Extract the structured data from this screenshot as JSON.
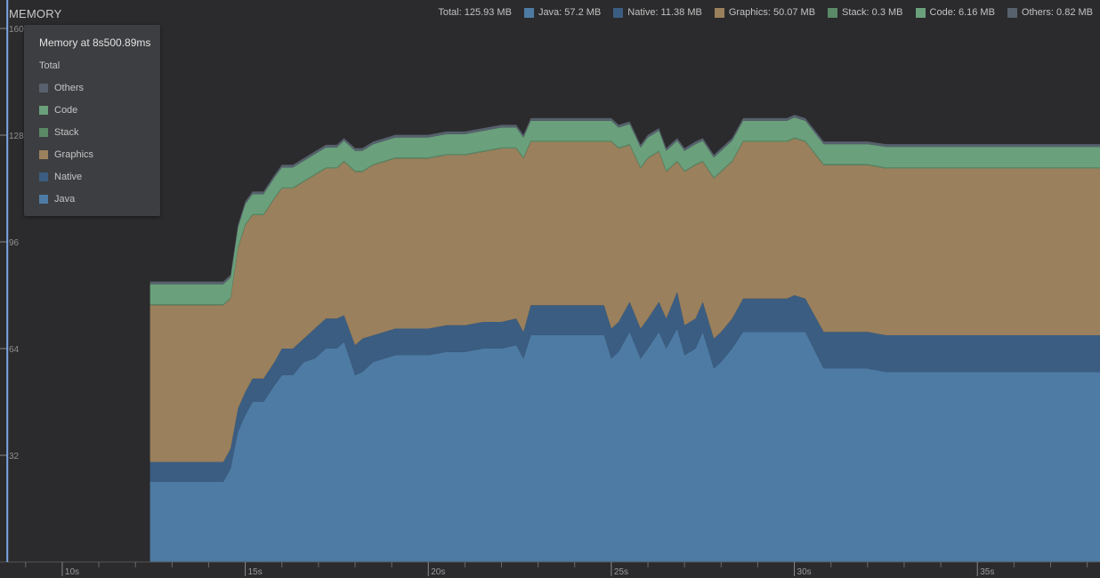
{
  "header": {
    "title": "MEMORY"
  },
  "legend": {
    "total_label": "Total: 125.93 MB",
    "items": [
      {
        "name": "Java",
        "text": "Java:   57.2 MB",
        "color": "#4d7ba4"
      },
      {
        "name": "Native",
        "text": "Native: 11.38 MB",
        "color": "#3b5d82"
      },
      {
        "name": "Graphics",
        "text": "Graphics:  50.07 MB",
        "color": "#9a805c"
      },
      {
        "name": "Stack",
        "text": "Stack:  0.3 MB",
        "color": "#5a8a66"
      },
      {
        "name": "Code",
        "text": "Code:  6.16 MB",
        "color": "#6aa07b"
      },
      {
        "name": "Others",
        "text": "Others: 0.82 MB",
        "color": "#56616d"
      }
    ]
  },
  "tooltip": {
    "title": "Memory at 8s500.89ms",
    "total_label": "Total",
    "rows": [
      {
        "label": "Others",
        "color": "#56616d"
      },
      {
        "label": "Code",
        "color": "#6aa07b"
      },
      {
        "label": "Stack",
        "color": "#5a8a66"
      },
      {
        "label": "Graphics",
        "color": "#9a805c"
      },
      {
        "label": "Native",
        "color": "#3b5d82"
      },
      {
        "label": "Java",
        "color": "#4d7ba4"
      }
    ]
  },
  "chart_data": {
    "type": "area",
    "stacked": true,
    "ylim": [
      0,
      160
    ],
    "xlim": [
      8.3,
      38.35
    ],
    "y_ticks": [
      32,
      64,
      96,
      128,
      160
    ],
    "y_tick_labels": [
      "32",
      "64",
      "96",
      "128",
      "160"
    ],
    "x_ticks": [
      10,
      15,
      20,
      25,
      30,
      35
    ],
    "x_tick_labels": [
      "10s",
      "15s",
      "20s",
      "25s",
      "30s",
      "35s"
    ],
    "cursor_time": 8.5,
    "x": [
      12.4,
      14.4,
      14.6,
      14.8,
      15.0,
      15.2,
      15.5,
      15.8,
      16.0,
      16.3,
      16.6,
      16.9,
      17.2,
      17.5,
      17.7,
      18.0,
      18.2,
      18.5,
      18.8,
      19.1,
      19.5,
      20.0,
      20.5,
      21.0,
      21.5,
      22.0,
      22.4,
      22.6,
      22.8,
      23.0,
      23.5,
      24.0,
      24.5,
      24.8,
      25.0,
      25.2,
      25.5,
      25.8,
      26.0,
      26.3,
      26.5,
      26.8,
      27.0,
      27.3,
      27.5,
      27.8,
      28.0,
      28.3,
      28.6,
      28.9,
      29.2,
      29.5,
      29.8,
      30.0,
      30.3,
      30.8,
      31.0,
      32.0,
      32.5,
      33.0,
      35.0,
      38.35
    ],
    "series": [
      {
        "name": "Java",
        "color": "#4d7ba4",
        "values": [
          24,
          24,
          28,
          39,
          44,
          48,
          48,
          53,
          56,
          56,
          60,
          61,
          64,
          64,
          66,
          56,
          57,
          60,
          61,
          62,
          62,
          62,
          63,
          63,
          64,
          64,
          65,
          61,
          68,
          68,
          68,
          68,
          68,
          68,
          61,
          63,
          69,
          61,
          64,
          69,
          64,
          70,
          62,
          64,
          69,
          58,
          60,
          64,
          69,
          69,
          69,
          69,
          69,
          69,
          69,
          58,
          58,
          58,
          57,
          57,
          57,
          57
        ]
      },
      {
        "name": "Native",
        "color": "#3b5d82",
        "values": [
          6,
          6,
          6,
          7,
          7,
          7,
          7,
          7,
          8,
          8,
          7,
          9,
          9,
          9,
          8,
          9,
          10,
          8,
          8,
          8,
          8,
          8,
          8,
          8,
          8,
          8,
          8,
          8,
          9,
          9,
          9,
          9,
          9,
          9,
          9,
          9,
          9,
          9,
          9,
          9,
          9,
          11,
          9,
          9,
          9,
          9,
          9,
          9,
          10,
          10,
          10,
          10,
          10,
          11,
          10,
          11,
          11,
          11,
          11,
          11,
          11,
          11
        ]
      },
      {
        "name": "Graphics",
        "color": "#9a805c",
        "values": [
          47,
          47,
          45,
          48,
          50,
          49,
          49,
          49,
          48,
          48,
          47,
          46,
          45,
          45,
          46,
          52,
          50,
          51,
          51,
          51,
          51,
          51,
          51,
          51,
          51,
          52,
          51,
          52,
          49,
          49,
          49,
          49,
          49,
          49,
          56,
          52,
          47,
          48,
          48,
          45,
          44,
          39,
          46,
          46,
          42,
          48,
          48,
          47,
          47,
          47,
          47,
          47,
          47,
          47,
          47,
          50,
          50,
          50,
          50,
          50,
          50,
          50
        ]
      },
      {
        "name": "Stack",
        "color": "#5a8a66",
        "values": [
          0.3,
          0.3,
          0.3,
          0.3,
          0.3,
          0.3,
          0.3,
          0.3,
          0.3,
          0.3,
          0.3,
          0.3,
          0.3,
          0.3,
          0.3,
          0.3,
          0.3,
          0.3,
          0.3,
          0.3,
          0.3,
          0.3,
          0.3,
          0.3,
          0.3,
          0.3,
          0.3,
          0.3,
          0.3,
          0.3,
          0.3,
          0.3,
          0.3,
          0.3,
          0.3,
          0.3,
          0.3,
          0.3,
          0.3,
          0.3,
          0.3,
          0.3,
          0.3,
          0.3,
          0.3,
          0.3,
          0.3,
          0.3,
          0.3,
          0.3,
          0.3,
          0.3,
          0.3,
          0.3,
          0.3,
          0.3,
          0.3,
          0.3,
          0.3,
          0.3,
          0.3,
          0.3
        ]
      },
      {
        "name": "Code",
        "color": "#6aa07b",
        "values": [
          6,
          6,
          6,
          6,
          6,
          6,
          6,
          6,
          6,
          6,
          6,
          6,
          6,
          6,
          6,
          6,
          6,
          6,
          6,
          6,
          6,
          6,
          6,
          6,
          6,
          6,
          6,
          6,
          6,
          6,
          6,
          6,
          6,
          6,
          6,
          6,
          6,
          6,
          6,
          6,
          6,
          6,
          6,
          6,
          6,
          6,
          6,
          6,
          6,
          6,
          6,
          6,
          6,
          6,
          6,
          6,
          6,
          6,
          6.2,
          6.2,
          6.2,
          6.2
        ]
      },
      {
        "name": "Others",
        "color": "#56616d",
        "values": [
          0.8,
          0.8,
          0.8,
          0.8,
          0.8,
          0.8,
          0.8,
          0.8,
          0.8,
          0.8,
          0.8,
          0.8,
          0.8,
          0.8,
          0.8,
          0.8,
          0.8,
          0.8,
          0.8,
          0.8,
          0.8,
          0.8,
          0.8,
          0.8,
          0.8,
          0.8,
          0.8,
          0.8,
          0.8,
          0.8,
          0.8,
          0.8,
          0.8,
          0.8,
          0.8,
          0.8,
          0.8,
          0.8,
          0.8,
          0.8,
          0.8,
          0.8,
          0.8,
          0.8,
          0.8,
          0.8,
          0.8,
          0.8,
          0.8,
          0.8,
          0.8,
          0.8,
          0.8,
          0.8,
          0.8,
          0.8,
          0.8,
          0.8,
          0.8,
          0.8,
          0.8,
          0.8
        ]
      }
    ]
  }
}
